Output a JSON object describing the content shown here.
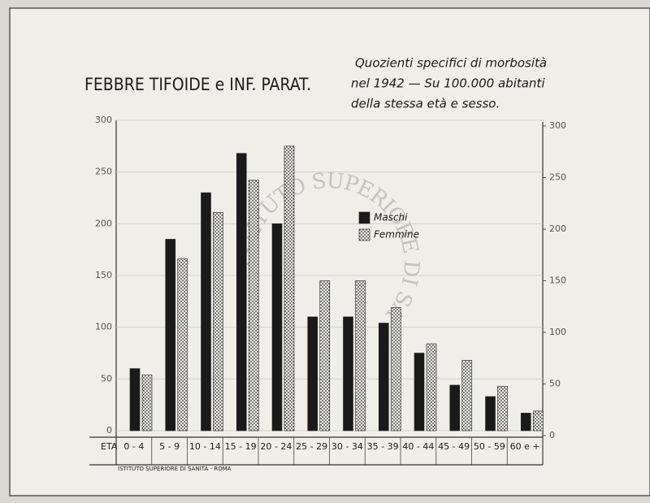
{
  "stamp": "ISTITUTO SUPERIORE DI SANITÀ",
  "footer": "ISTITUTO SUPERIORE DI SANITÀ - ROMA",
  "chart_data": {
    "type": "bar",
    "title": "FEBBRE TIFOIDE e INF. PARAT.",
    "subtitle": [
      "Quozienti specifici di morbosità",
      "nel 1942 — Su 100.000 abitanti",
      "della stessa età e sesso."
    ],
    "x_label": "ETA",
    "categories": [
      "0 - 4",
      "5 - 9",
      "10 - 14",
      "15 - 19",
      "20 - 24",
      "25 - 29",
      "30 - 34",
      "35 - 39",
      "40 - 44",
      "45 - 49",
      "50 - 59",
      "60 e +"
    ],
    "series": [
      {
        "name": "Maschi",
        "color": "#1a1a1a",
        "values": [
          60,
          185,
          230,
          268,
          200,
          110,
          110,
          104,
          75,
          44,
          33,
          17
        ]
      },
      {
        "name": "Femmine",
        "color": "#f4f3ee",
        "pattern": "dots",
        "values": [
          54,
          166,
          211,
          242,
          275,
          145,
          145,
          119,
          84,
          68,
          43,
          19
        ]
      }
    ],
    "ylim": [
      0,
      300
    ],
    "yticks": [
      0,
      50,
      100,
      150,
      200,
      250,
      300
    ],
    "y2lim": [
      0,
      300
    ],
    "y2ticks": [
      0,
      50,
      100,
      150,
      200,
      250,
      300
    ],
    "grid": true
  }
}
